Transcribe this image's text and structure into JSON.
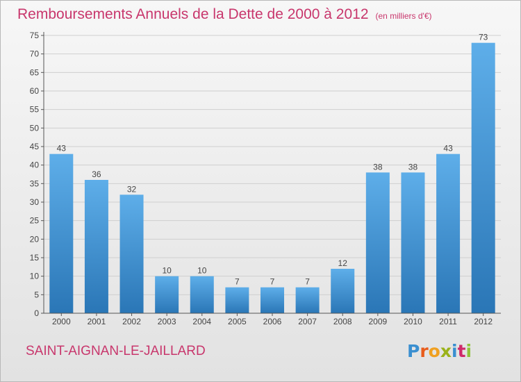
{
  "title": "Remboursements Annuels de la Dette de 2000 à 2012",
  "subtitle": "(en milliers d'€)",
  "commune": "SAINT-AIGNAN-LE-JAILLARD",
  "logo": "Proxiti",
  "colors": {
    "accent": "#c8366c",
    "bar_light": "#5aa9e6",
    "bar_dark": "#2a78b8",
    "axis": "#555555"
  },
  "chart_data": {
    "type": "bar",
    "title": "Remboursements Annuels de la Dette de 2000 à 2012",
    "subtitle": "(en milliers d'€)",
    "xlabel": "",
    "ylabel": "",
    "categories": [
      "2000",
      "2001",
      "2002",
      "2003",
      "2004",
      "2005",
      "2006",
      "2007",
      "2008",
      "2009",
      "2010",
      "2011",
      "2012"
    ],
    "values": [
      43,
      36,
      32,
      10,
      10,
      7,
      7,
      7,
      12,
      38,
      38,
      43,
      73
    ],
    "ylim": [
      0,
      75
    ],
    "yticks": [
      0,
      5,
      10,
      15,
      20,
      25,
      30,
      35,
      40,
      45,
      50,
      55,
      60,
      65,
      70,
      75
    ],
    "grid": true
  }
}
